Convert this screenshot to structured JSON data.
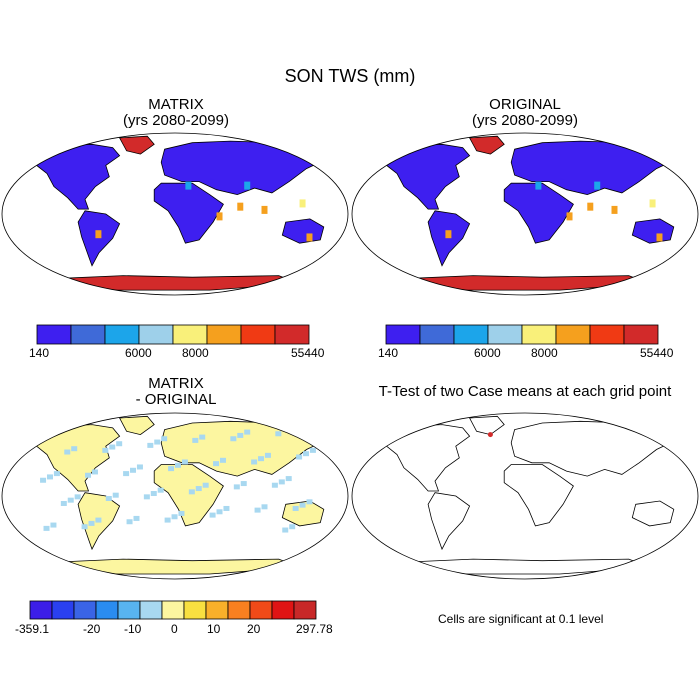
{
  "figure": {
    "title": "SON TWS (mm)"
  },
  "panels": [
    {
      "id": "matrix",
      "title_line1": "MATRIX",
      "title_line2": "(yrs 2080-2099)"
    },
    {
      "id": "original",
      "title_line1": "ORIGINAL",
      "title_line2": "(yrs 2080-2099)"
    },
    {
      "id": "difference",
      "title_line1": "MATRIX",
      "title_line2": "- ORIGINAL"
    },
    {
      "id": "ttest",
      "title_line1": "T-Test of two Case means at each grid point",
      "title_line2": ""
    }
  ],
  "colorbar_abs": {
    "colors": [
      "#3e1ff0",
      "#3f6ad8",
      "#1ca5ea",
      "#9ed0ea",
      "#f9f07a",
      "#f5a01e",
      "#f03a14",
      "#d22a2a"
    ],
    "labels": [
      "140",
      "6000",
      "8000",
      "55440"
    ]
  },
  "colorbar_diff": {
    "colors": [
      "#3c1ee8",
      "#2a40f0",
      "#3a64e6",
      "#2a8cf0",
      "#58b4f0",
      "#a8d8f0",
      "#fcf6a0",
      "#f8e040",
      "#f8b02a",
      "#f88020",
      "#f04a18",
      "#e01414",
      "#c82828"
    ],
    "labels": [
      "-359.1",
      "-20",
      "-10",
      "0",
      "10",
      "20",
      "297.78"
    ]
  },
  "map_colors": {
    "land_abs": "#3e1ff0",
    "polar_abs": "#d22a2a",
    "accent_abs": [
      "#1ca5ea",
      "#f5a01e",
      "#f9f07a"
    ],
    "land_diff": "#fcf6a0",
    "speckle_diff": "#a8d8f0",
    "sig_point": "#d22a2a"
  },
  "ttest_note": "Cells are significant at 0.1 level"
}
